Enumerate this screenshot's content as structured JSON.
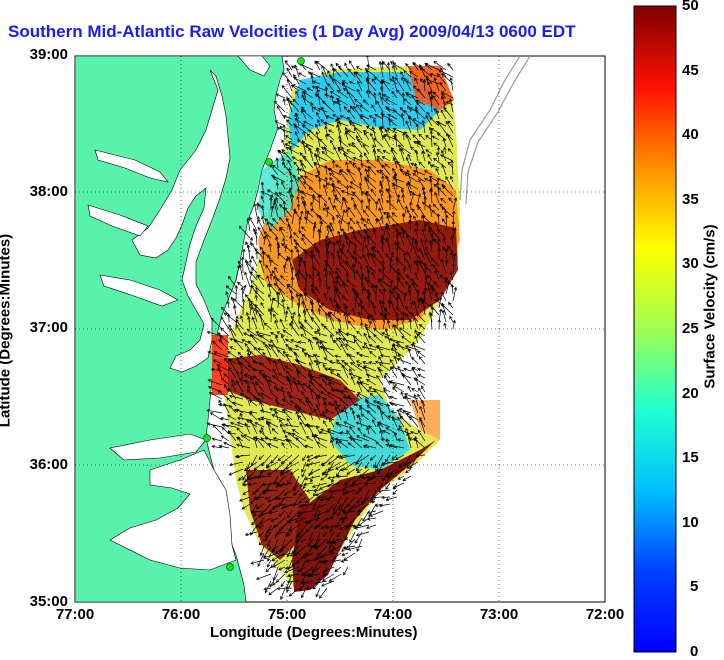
{
  "map": {
    "title": "Southern Mid-Atlantic Raw Velocities (1 Day Avg) 2009/04/13 0600 EDT",
    "xlabel": "Longitude (Degrees:Minutes)",
    "ylabel": "Latitude (Degrees:Minutes)",
    "x_ticks": [
      "77:00",
      "76:00",
      "75:00",
      "74:00",
      "73:00",
      "72:00"
    ],
    "y_ticks": [
      "39:00",
      "38:00",
      "37:00",
      "36:00",
      "35:00"
    ],
    "grid": "dotted",
    "colors": {
      "land": "#58f2aa",
      "water": "#ffffff",
      "title": "#1a1aff"
    }
  },
  "colorbar": {
    "label": "Surface Velocity (cm/s)",
    "ticks": [
      "50",
      "45",
      "40",
      "35",
      "30",
      "25",
      "20",
      "15",
      "10",
      "5",
      "0"
    ],
    "range": [
      0,
      50
    ],
    "colormap": "jet"
  }
}
